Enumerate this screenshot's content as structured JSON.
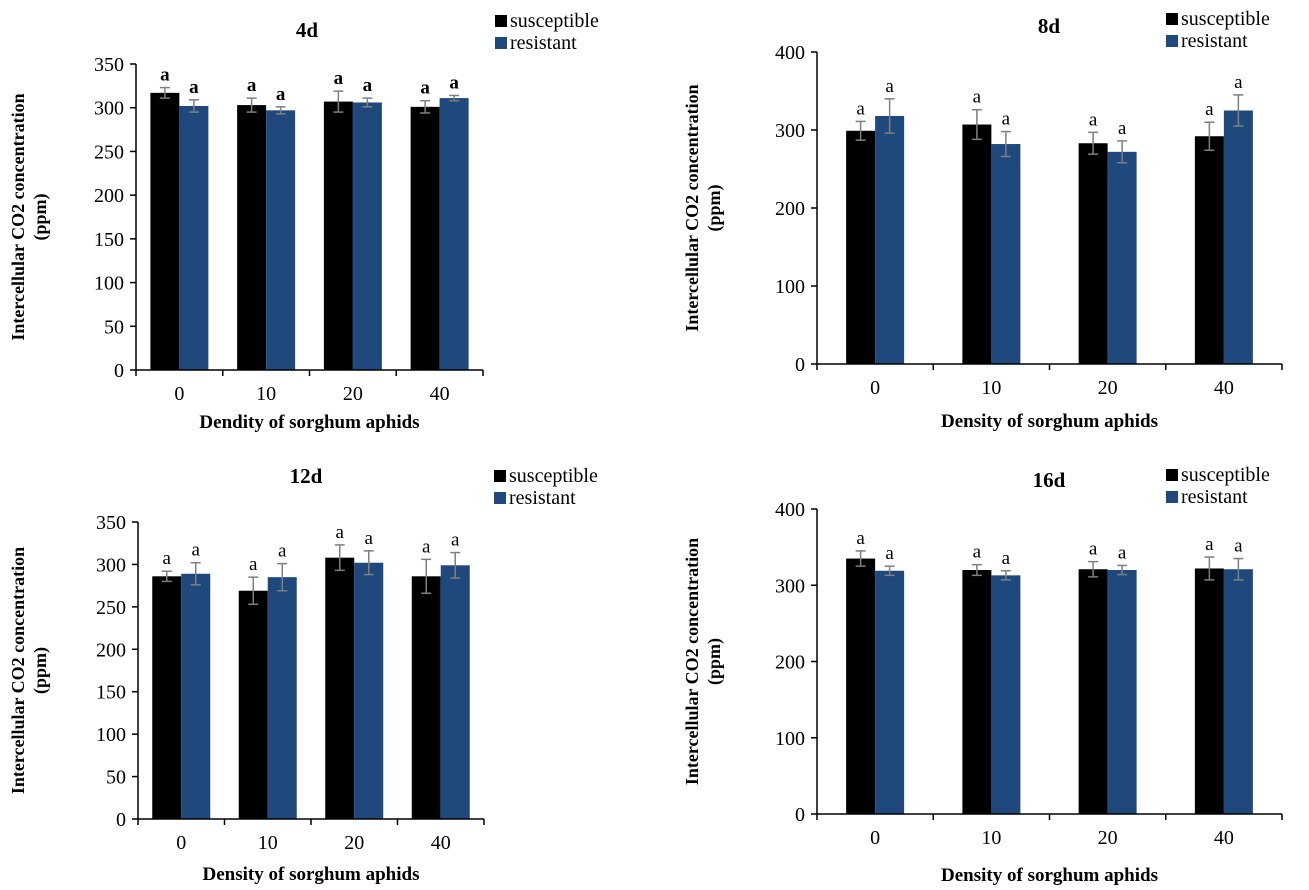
{
  "figure": {
    "colors": {
      "susceptible": "#000000",
      "resistant": "#1f497d",
      "error_bar": "#7f7f7f"
    }
  },
  "chart_data": [
    {
      "type": "bar",
      "title": "4d",
      "xlabel": "Dendity of  sorghum aphids",
      "ylabel": [
        "Intercellular CO2 concentration",
        "(ppm)"
      ],
      "categories": [
        "0",
        "10",
        "20",
        "40"
      ],
      "ylim": [
        0,
        350
      ],
      "yticks": [
        0,
        50,
        100,
        150,
        200,
        250,
        300,
        350
      ],
      "grid": false,
      "legend_position": "top-right",
      "letters_bold": true,
      "series": [
        {
          "name": "susceptible",
          "values": [
            317,
            303,
            307,
            301
          ],
          "errors": [
            6,
            8,
            12,
            7
          ],
          "labels": [
            "a",
            "a",
            "a",
            "a"
          ]
        },
        {
          "name": "resistant",
          "values": [
            302,
            297,
            306,
            311
          ],
          "errors": [
            7,
            4,
            5,
            3
          ],
          "labels": [
            "a",
            "a",
            "a",
            "a"
          ]
        }
      ]
    },
    {
      "type": "bar",
      "title": "8d",
      "xlabel": "Density of  sorghum aphids",
      "ylabel": [
        "Intercellular CO2 concentration",
        "(ppm)"
      ],
      "categories": [
        "0",
        "10",
        "20",
        "40"
      ],
      "ylim": [
        0,
        400
      ],
      "yticks": [
        0,
        100,
        200,
        300,
        400
      ],
      "grid": false,
      "legend_position": "top-right",
      "letters_bold": false,
      "series": [
        {
          "name": "susceptible",
          "values": [
            299,
            307,
            283,
            292
          ],
          "errors": [
            12,
            19,
            14,
            18
          ],
          "labels": [
            "a",
            "a",
            "a",
            "a"
          ]
        },
        {
          "name": "resistant",
          "values": [
            318,
            282,
            272,
            325
          ],
          "errors": [
            22,
            16,
            14,
            20
          ],
          "labels": [
            "a",
            "a",
            "a",
            "a"
          ]
        }
      ]
    },
    {
      "type": "bar",
      "title": "12d",
      "xlabel": "Density of  sorghum aphids",
      "ylabel": [
        "Intercellular CO2 concentration",
        "(ppm)"
      ],
      "categories": [
        "0",
        "10",
        "20",
        "40"
      ],
      "ylim": [
        0,
        350
      ],
      "yticks": [
        0,
        50,
        100,
        150,
        200,
        250,
        300,
        350
      ],
      "grid": false,
      "legend_position": "top-right",
      "letters_bold": false,
      "series": [
        {
          "name": "susceptible",
          "values": [
            286,
            269,
            308,
            286
          ],
          "errors": [
            6,
            16,
            15,
            20
          ],
          "labels": [
            "a",
            "a",
            "a",
            "a"
          ]
        },
        {
          "name": "resistant",
          "values": [
            289,
            285,
            302,
            299
          ],
          "errors": [
            13,
            16,
            14,
            15
          ],
          "labels": [
            "a",
            "a",
            "a",
            "a"
          ]
        }
      ]
    },
    {
      "type": "bar",
      "title": "16d",
      "xlabel": "Density of  sorghum aphids",
      "ylabel": [
        "Intercellular CO2 concentration",
        "(ppm)"
      ],
      "categories": [
        "0",
        "10",
        "20",
        "40"
      ],
      "ylim": [
        0,
        400
      ],
      "yticks": [
        0,
        100,
        200,
        300,
        400
      ],
      "grid": false,
      "legend_position": "top-right",
      "letters_bold": false,
      "series": [
        {
          "name": "susceptible",
          "values": [
            335,
            320,
            321,
            322
          ],
          "errors": [
            10,
            7,
            10,
            15
          ],
          "labels": [
            "a",
            "a",
            "a",
            "a"
          ]
        },
        {
          "name": "resistant",
          "values": [
            319,
            313,
            320,
            321
          ],
          "errors": [
            6,
            6,
            6,
            14
          ],
          "labels": [
            "a",
            "a",
            "a",
            "a"
          ]
        }
      ]
    }
  ]
}
